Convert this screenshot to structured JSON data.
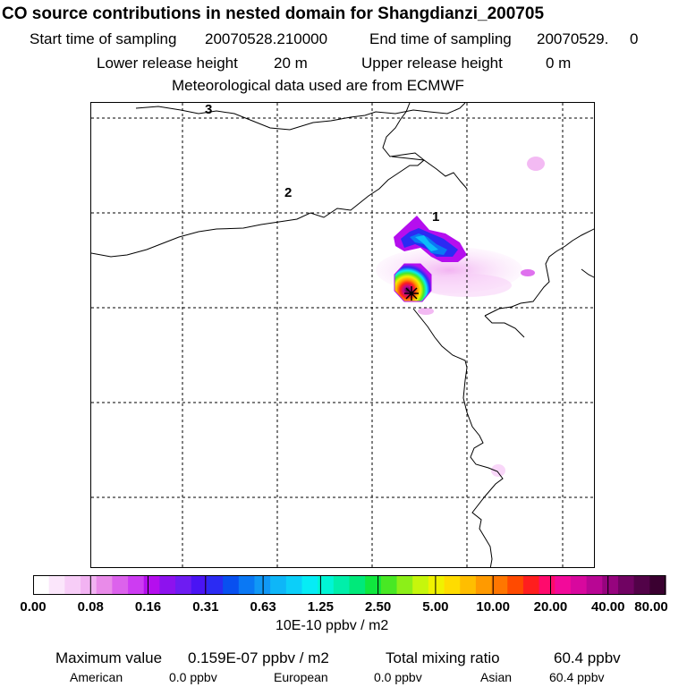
{
  "header": {
    "title": "CO  source contributions in nested domain for Shangdianzi_200705",
    "start_label": "Start time of sampling",
    "start_value": "20070528.210000",
    "end_label": "End time of sampling",
    "end_value": "20070529.     0",
    "lower_label": "Lower release height",
    "lower_value": "20 m",
    "upper_label": "Upper release height",
    "upper_value": "0 m",
    "met_note": "Meteorological data used are from ECMWF"
  },
  "map": {
    "region_labels": [
      "3",
      "2",
      "1"
    ]
  },
  "colorbar": {
    "colors": [
      "#ffffff",
      "#fbe6fb",
      "#f7cdf7",
      "#f2b3f2",
      "#e98be9",
      "#dc62ec",
      "#cd3cf2",
      "#b50eee",
      "#8d12ee",
      "#6e1cf2",
      "#4a14f4",
      "#2b2bf3",
      "#0850f0",
      "#0a78f4",
      "#1098f6",
      "#0eb6f8",
      "#0ccff9",
      "#06ecf5",
      "#00f5d5",
      "#00efaa",
      "#00e97a",
      "#10e73e",
      "#48e824",
      "#8cef18",
      "#c6f60c",
      "#f0f200",
      "#ffdc00",
      "#ffbe00",
      "#ff9a00",
      "#ff7600",
      "#ff4a00",
      "#ff1e1e",
      "#ff0a6c",
      "#f20a9a",
      "#d8089e",
      "#b80694",
      "#96047e",
      "#700362",
      "#520248",
      "#3a0030"
    ],
    "tick_labels": [
      "0.00",
      "0.08",
      "0.16",
      "0.31",
      "0.63",
      "1.25",
      "2.50",
      "5.00",
      "10.00",
      "20.00",
      "40.00",
      "80.00"
    ],
    "unit": "10E-10 ppbv / m2"
  },
  "footer": {
    "max_label": "Maximum value",
    "max_value": "0.159E-07 ppbv / m2",
    "total_label": "Total mixing ratio",
    "total_value": "60.4 ppbv",
    "american_label": "American",
    "american_value": "0.0 ppbv",
    "european_label": "European",
    "european_value": "0.0 ppbv",
    "asian_label": "Asian",
    "asian_value": "60.4 ppbv"
  }
}
